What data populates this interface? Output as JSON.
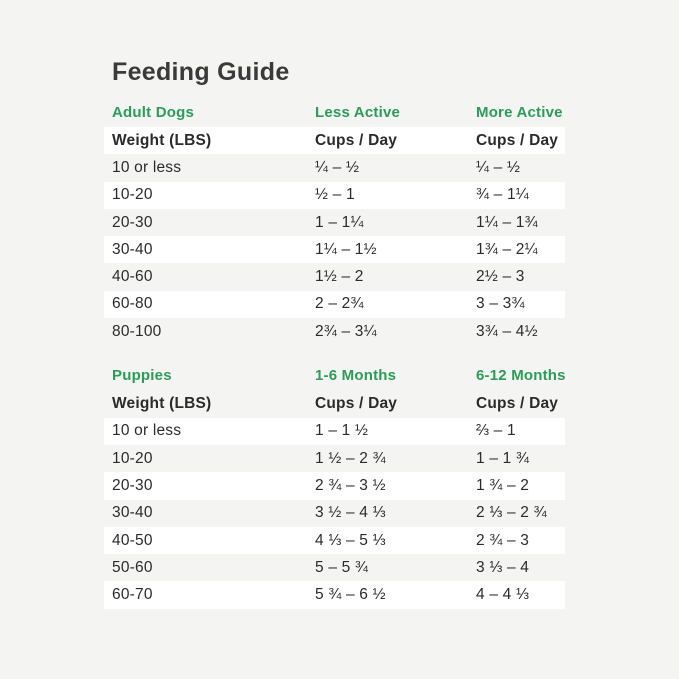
{
  "title": "Feeding Guide",
  "colors": {
    "accent_green": "#2a9d56",
    "page_background": "#f4f4f3",
    "row_highlight": "#ffffff",
    "title_text": "#3a3a3a",
    "body_text": "#2b2b2b"
  },
  "chart_data": [
    {
      "type": "table",
      "group_headers": [
        "Adult Dogs",
        "Less Active",
        "More Active"
      ],
      "col_headers": [
        "Weight (LBS)",
        "Cups / Day",
        "Cups / Day"
      ],
      "rows": [
        [
          "10 or less",
          "¼ – ½",
          "¼ – ½"
        ],
        [
          "10-20",
          "½ – 1",
          "¾ – 1¼"
        ],
        [
          "20-30",
          "1 – 1¼",
          "1¼ – 1¾"
        ],
        [
          "30-40",
          "1¼ – 1½",
          "1¾ – 2¼"
        ],
        [
          "40-60",
          "1½ – 2",
          "2½ – 3"
        ],
        [
          "60-80",
          "2 – 2¾",
          "3 – 3¾"
        ],
        [
          "80-100",
          "2¾ – 3¼",
          "3¾ – 4½"
        ]
      ]
    },
    {
      "type": "table",
      "group_headers": [
        "Puppies",
        "1-6 Months",
        "6-12 Months"
      ],
      "col_headers": [
        "Weight (LBS)",
        "Cups / Day",
        "Cups / Day"
      ],
      "rows": [
        [
          "10 or less",
          "1 – 1 ½",
          "⅔ – 1"
        ],
        [
          "10-20",
          "1 ½ – 2 ¾",
          "1 – 1 ¾"
        ],
        [
          "20-30",
          "2 ¾ – 3 ½",
          "1 ¾ – 2"
        ],
        [
          "30-40",
          "3 ½ – 4 ⅓",
          "2 ⅓ – 2 ¾"
        ],
        [
          "40-50",
          "4 ⅓ – 5 ⅓",
          "2 ¾ – 3"
        ],
        [
          "50-60",
          "5 – 5 ¾",
          "3 ⅓ – 4"
        ],
        [
          "60-70",
          "5 ¾ – 6 ½",
          "4 – 4 ⅓"
        ]
      ]
    }
  ]
}
